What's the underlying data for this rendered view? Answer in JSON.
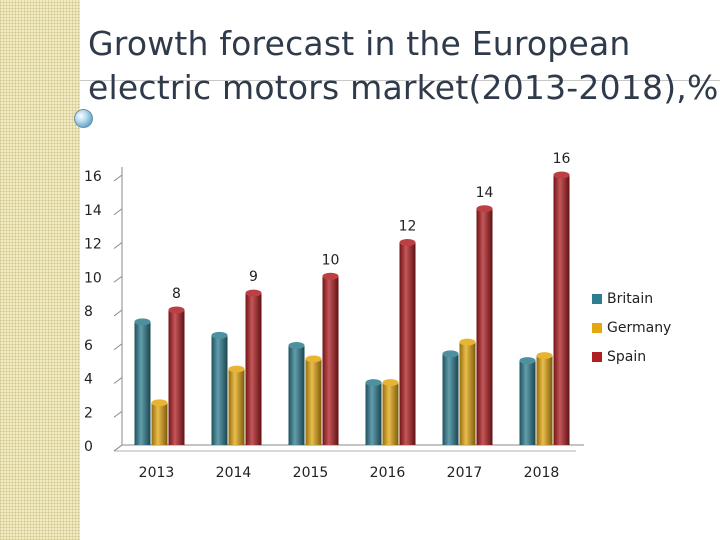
{
  "title_lines": [
    "Growth forecast in the European",
    "electric motors market(2013-2018),%"
  ],
  "chart_data": {
    "type": "bar",
    "title": "Growth forecast in the European electric motors market(2013-2018),%",
    "categories": [
      "2013",
      "2014",
      "2015",
      "2016",
      "2017",
      "2018"
    ],
    "series": [
      {
        "name": "Britain",
        "color": "#2e7d90",
        "values": [
          7.3,
          6.5,
          5.9,
          3.7,
          5.4,
          5.0
        ]
      },
      {
        "name": "Germany",
        "color": "#e3a710",
        "values": [
          2.5,
          4.5,
          5.1,
          3.7,
          6.1,
          5.3
        ]
      },
      {
        "name": "Spain",
        "color": "#b01e22",
        "values": [
          8,
          9,
          10,
          12,
          14,
          16
        ],
        "labels": [
          "8",
          "9",
          "10",
          "12",
          "14",
          "16"
        ]
      }
    ],
    "ylim": [
      0,
      16
    ],
    "yticks": [
      "0",
      "2",
      "4",
      "6",
      "8",
      "10",
      "12",
      "14",
      "16"
    ],
    "grid": false,
    "legend_position": "right",
    "xlabel": "",
    "ylabel": ""
  }
}
